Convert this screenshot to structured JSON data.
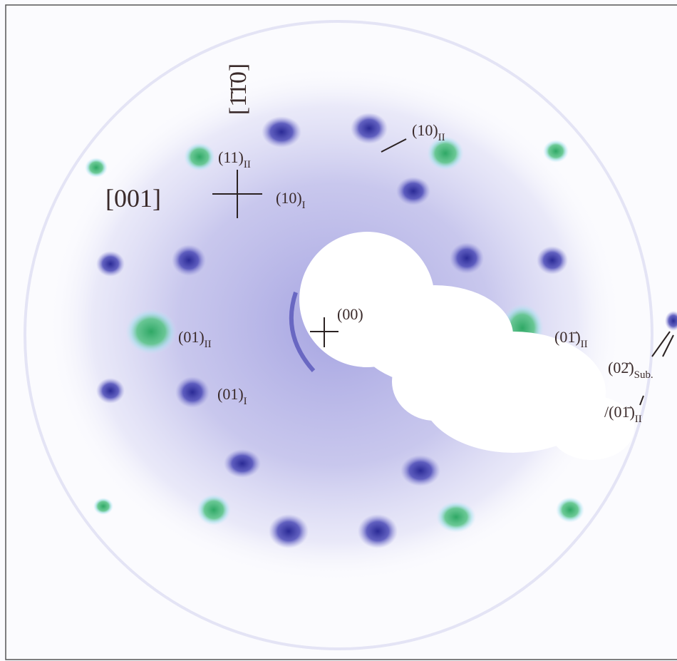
{
  "labels": [
    {
      "main": "[1̄1̄0]"
    },
    {
      "main": "[001]"
    },
    {
      "main": "(10)",
      "sub": "II"
    },
    {
      "main": "(11)",
      "sub": "II"
    },
    {
      "main": "(10)",
      "sub": "I"
    },
    {
      "main": "(00)"
    },
    {
      "main": "(01)",
      "sub": "II"
    },
    {
      "main": "(01̄)",
      "sub": "II"
    },
    {
      "main": "(01)",
      "sub": "I"
    },
    {
      "main": "(02̄)",
      "sub": "Sub."
    },
    {
      "main": "/(01̄)",
      "sub": "II"
    }
  ]
}
